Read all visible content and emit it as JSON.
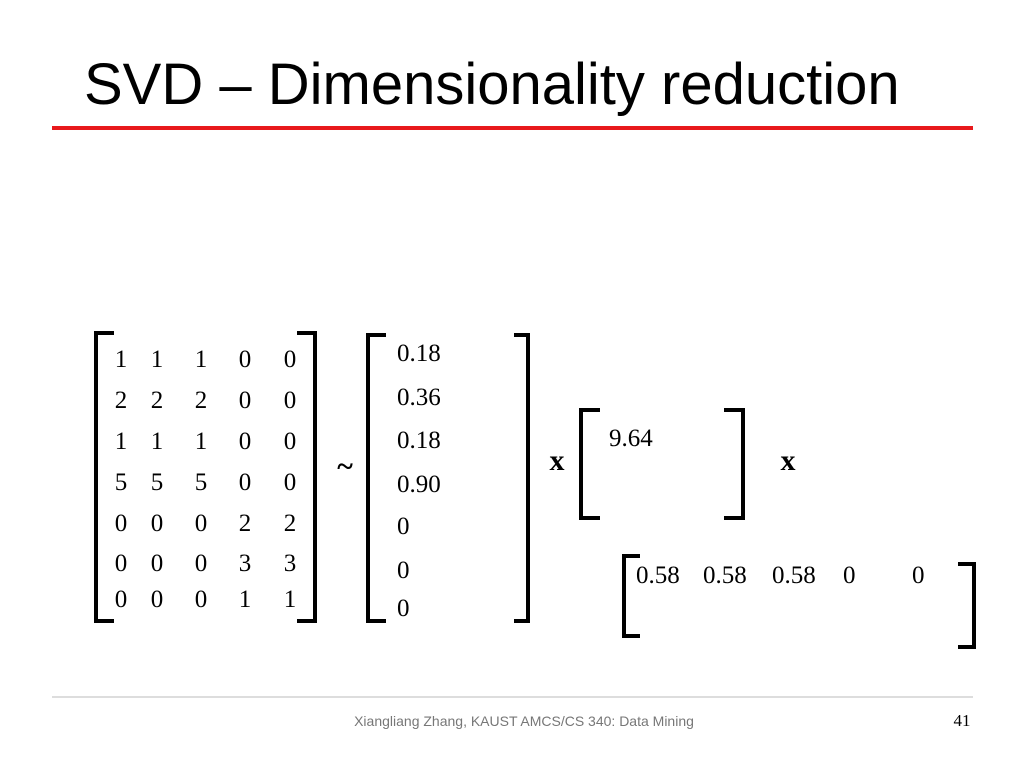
{
  "header": {
    "title": "SVD – Dimensionality reduction"
  },
  "matrix_a": {
    "rows": [
      [
        "1",
        "1",
        "1",
        "0",
        "0"
      ],
      [
        "2",
        "2",
        "2",
        "0",
        "0"
      ],
      [
        "1",
        "1",
        "1",
        "0",
        "0"
      ],
      [
        "5",
        "5",
        "5",
        "0",
        "0"
      ],
      [
        "0",
        "0",
        "0",
        "2",
        "2"
      ],
      [
        "0",
        "0",
        "0",
        "3",
        "3"
      ],
      [
        "0",
        "0",
        "0",
        "1",
        "1"
      ]
    ]
  },
  "operators": {
    "approx": "~",
    "times_1": "x",
    "times_2": "x"
  },
  "u": {
    "values": [
      "0.18",
      "0.36",
      "0.18",
      "0.90",
      "0",
      "0",
      "0"
    ]
  },
  "sigma": {
    "values": [
      "9.64"
    ]
  },
  "v": {
    "values": [
      "0.58",
      "0.58",
      "0.58",
      "0",
      "0"
    ]
  },
  "footer": {
    "text": "Xiangliang Zhang, KAUST AMCS/CS 340: Data Mining",
    "page": "41"
  }
}
